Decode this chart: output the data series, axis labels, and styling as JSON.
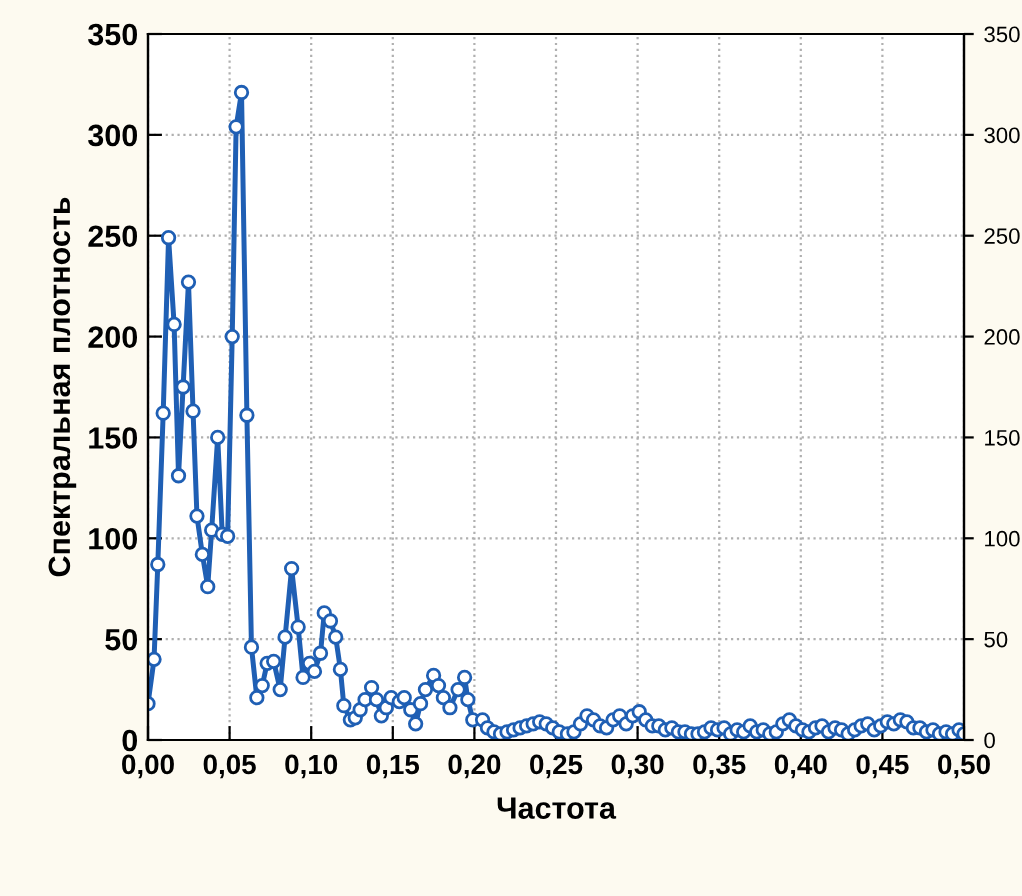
{
  "chart_data": {
    "type": "line",
    "xlabel": "Частота",
    "ylabel": "Спектральная плотность",
    "x": [
      0,
      0.0037,
      0.006,
      0.0093,
      0.0126,
      0.016,
      0.0187,
      0.0215,
      0.0248,
      0.0276,
      0.03,
      0.0333,
      0.0366,
      0.039,
      0.0427,
      0.0455,
      0.0488,
      0.0516,
      0.054,
      0.0573,
      0.0606,
      0.0634,
      0.0667,
      0.07,
      0.073,
      0.077,
      0.081,
      0.084,
      0.088,
      0.092,
      0.095,
      0.099,
      0.102,
      0.1057,
      0.108,
      0.1118,
      0.115,
      0.1179,
      0.12,
      0.124,
      0.127,
      0.13,
      0.133,
      0.137,
      0.14,
      0.143,
      0.146,
      0.149,
      0.154,
      0.157,
      0.161,
      0.164,
      0.167,
      0.17,
      0.175,
      0.178,
      0.181,
      0.185,
      0.19,
      0.194,
      0.196,
      0.199,
      0.205,
      0.208,
      0.212,
      0.216,
      0.22,
      0.224,
      0.228,
      0.232,
      0.236,
      0.24,
      0.244,
      0.248,
      0.252,
      0.257,
      0.261,
      0.265,
      0.269,
      0.273,
      0.277,
      0.281,
      0.285,
      0.289,
      0.293,
      0.297,
      0.301,
      0.305,
      0.309,
      0.313,
      0.317,
      0.321,
      0.325,
      0.329,
      0.333,
      0.337,
      0.341,
      0.345,
      0.349,
      0.353,
      0.357,
      0.361,
      0.365,
      0.369,
      0.373,
      0.377,
      0.381,
      0.385,
      0.389,
      0.393,
      0.397,
      0.401,
      0.405,
      0.409,
      0.413,
      0.417,
      0.421,
      0.425,
      0.429,
      0.433,
      0.437,
      0.441,
      0.445,
      0.449,
      0.453,
      0.457,
      0.461,
      0.465,
      0.469,
      0.473,
      0.477,
      0.481,
      0.485,
      0.489,
      0.493,
      0.497,
      0.5
    ],
    "series": [
      {
        "color": "#1f5fb4",
        "values": [
          18,
          40,
          87,
          162,
          249,
          206,
          131,
          175,
          227,
          163,
          111,
          92,
          76,
          104,
          150,
          102,
          101,
          200,
          304,
          321,
          161,
          46,
          21,
          27,
          38,
          39,
          25,
          51,
          85,
          56,
          31,
          38,
          34,
          43,
          63,
          59,
          51,
          35,
          17,
          10,
          11,
          15,
          20,
          26,
          20,
          12,
          16,
          21,
          19,
          21,
          15,
          8,
          18,
          25,
          32,
          27,
          21,
          16,
          25,
          31,
          20,
          10,
          10,
          6,
          4,
          3,
          4,
          5,
          6,
          7,
          8,
          9,
          8,
          6,
          4,
          3,
          4,
          8,
          12,
          10,
          7,
          6,
          10,
          12,
          8,
          12,
          14,
          10,
          7,
          7,
          5,
          6,
          4,
          4,
          3,
          3,
          4,
          6,
          5,
          6,
          3,
          5,
          4,
          7,
          4,
          5,
          3,
          4,
          8,
          10,
          7,
          5,
          4,
          6,
          7,
          4,
          6,
          5,
          3,
          5,
          7,
          8,
          5,
          7,
          9,
          8,
          10,
          9,
          6,
          6,
          4,
          5,
          3,
          4,
          3,
          5,
          3
        ]
      }
    ],
    "marker": "circle",
    "line_style": "solid",
    "grid": true,
    "legend": false,
    "xlim": [
      0,
      0.5
    ],
    "xticks": [
      {
        "value": 0,
        "label": "0,00"
      },
      {
        "value": 0.05,
        "label": "0,05"
      },
      {
        "value": 0.1,
        "label": "0,10"
      },
      {
        "value": 0.15,
        "label": "0,15"
      },
      {
        "value": 0.2,
        "label": "0,20"
      },
      {
        "value": 0.25,
        "label": "0,25"
      },
      {
        "value": 0.3,
        "label": "0,30"
      },
      {
        "value": 0.35,
        "label": "0,35"
      },
      {
        "value": 0.4,
        "label": "0,40"
      },
      {
        "value": 0.45,
        "label": "0,45"
      },
      {
        "value": 0.5,
        "label": "0,50"
      }
    ],
    "ylim": [
      0,
      350
    ],
    "yticks": [
      0,
      50,
      100,
      150,
      200,
      250,
      300,
      350
    ],
    "y2lim": [
      0,
      350
    ],
    "y2ticks": [
      0,
      50,
      100,
      150,
      200,
      250,
      300,
      350
    ]
  }
}
